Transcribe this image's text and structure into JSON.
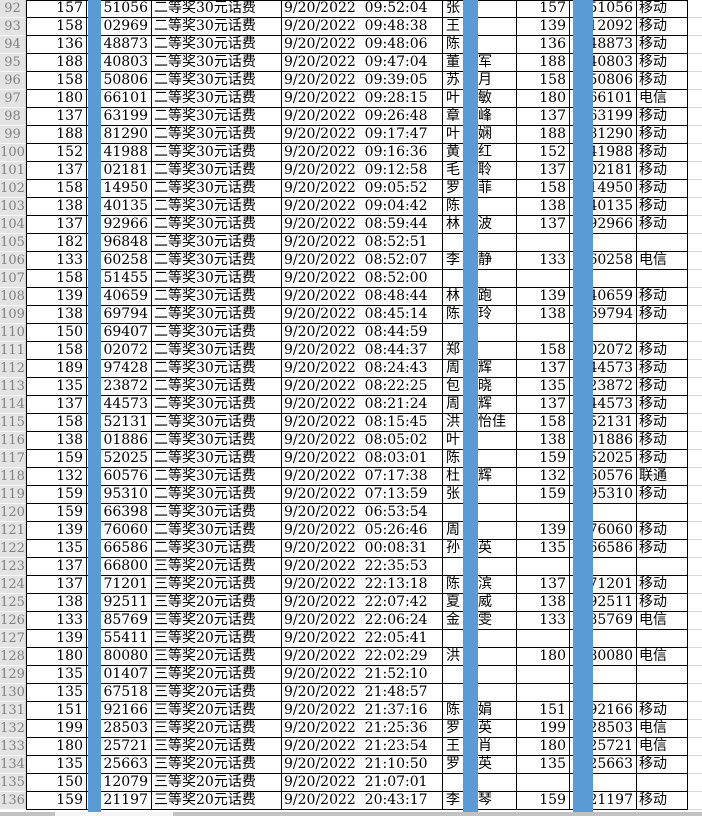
{
  "colors": {
    "redaction_blue": "#5B9BD5",
    "grid_black": "#000000",
    "row_header_bg": "#e3e3e3",
    "row_header_text": "#808080",
    "light_gridline": "#d8d8d8",
    "scrollbar_track": "#c2c2c2",
    "scrollbar_thumb": "#f5f5f5"
  },
  "table": {
    "rows": [
      {
        "n": "92",
        "a": "157",
        "b": "51056",
        "c": "二等奖30元话费",
        "d": "9/20/2022  09:52:04",
        "e1": "张",
        "e2": "",
        "f": "157",
        "g": "51056",
        "h": "移动"
      },
      {
        "n": "93",
        "a": "158",
        "b": "02969",
        "c": "二等奖30元话费",
        "d": "9/20/2022  09:48:38",
        "e1": "王",
        "e2": "",
        "f": "139",
        "g": "12092",
        "h": "移动"
      },
      {
        "n": "94",
        "a": "136",
        "b": "48873",
        "c": "二等奖30元话费",
        "d": "9/20/2022  09:48:06",
        "e1": "陈",
        "e2": "",
        "f": "136",
        "g": "48873",
        "h": "移动"
      },
      {
        "n": "95",
        "a": "188",
        "b": "40803",
        "c": "二等奖30元话费",
        "d": "9/20/2022  09:47:04",
        "e1": "董",
        "e2": "军",
        "f": "188",
        "g": "40803",
        "h": "移动"
      },
      {
        "n": "96",
        "a": "158",
        "b": "50806",
        "c": "二等奖30元话费",
        "d": "9/20/2022  09:39:05",
        "e1": "苏",
        "e2": "月",
        "f": "158",
        "g": "50806",
        "h": "移动"
      },
      {
        "n": "97",
        "a": "180",
        "b": "66101",
        "c": "二等奖30元话费",
        "d": "9/20/2022  09:28:15",
        "e1": "叶",
        "e2": "敏",
        "f": "180",
        "g": "66101",
        "h": "电信"
      },
      {
        "n": "98",
        "a": "137",
        "b": "63199",
        "c": "二等奖30元话费",
        "d": "9/20/2022  09:26:48",
        "e1": "章",
        "e2": "峰",
        "f": "137",
        "g": "63199",
        "h": "移动"
      },
      {
        "n": "99",
        "a": "188",
        "b": "81290",
        "c": "二等奖30元话费",
        "d": "9/20/2022  09:17:47",
        "e1": "叶",
        "e2": "娴",
        "f": "188",
        "g": "81290",
        "h": "移动"
      },
      {
        "n": "100",
        "a": "152",
        "b": "41988",
        "c": "二等奖30元话费",
        "d": "9/20/2022  09:16:36",
        "e1": "黄",
        "e2": "红",
        "f": "152",
        "g": "41988",
        "h": "移动"
      },
      {
        "n": "101",
        "a": "137",
        "b": "02181",
        "c": "二等奖30元话费",
        "d": "9/20/2022  09:12:58",
        "e1": "毛",
        "e2": "聆",
        "f": "137",
        "g": "02181",
        "h": "移动"
      },
      {
        "n": "102",
        "a": "158",
        "b": "14950",
        "c": "二等奖30元话费",
        "d": "9/20/2022  09:05:52",
        "e1": "罗",
        "e2": "菲",
        "f": "158",
        "g": "14950",
        "h": "移动"
      },
      {
        "n": "103",
        "a": "138",
        "b": "40135",
        "c": "二等奖30元话费",
        "d": "9/20/2022  09:04:42",
        "e1": "陈",
        "e2": "",
        "f": "138",
        "g": "40135",
        "h": "移动"
      },
      {
        "n": "104",
        "a": "137",
        "b": "92966",
        "c": "二等奖30元话费",
        "d": "9/20/2022  08:59:44",
        "e1": "林",
        "e2": "波",
        "f": "137",
        "g": "92966",
        "h": "移动"
      },
      {
        "n": "105",
        "a": "182",
        "b": "96848",
        "c": "二等奖30元话费",
        "d": "9/20/2022  08:52:51",
        "e1": "",
        "e2": "",
        "f": "",
        "g": "",
        "h": ""
      },
      {
        "n": "106",
        "a": "133",
        "b": "60258",
        "c": "二等奖30元话费",
        "d": "9/20/2022  08:52:07",
        "e1": "李",
        "e2": "静",
        "f": "133",
        "g": "60258",
        "h": "电信"
      },
      {
        "n": "107",
        "a": "158",
        "b": "51455",
        "c": "二等奖30元话费",
        "d": "9/20/2022  08:52:00",
        "e1": "",
        "e2": "",
        "f": "",
        "g": "",
        "h": ""
      },
      {
        "n": "108",
        "a": "139",
        "b": "40659",
        "c": "二等奖30元话费",
        "d": "9/20/2022  08:48:44",
        "e1": "林",
        "e2": "跑",
        "f": "139",
        "g": "40659",
        "h": "移动"
      },
      {
        "n": "109",
        "a": "138",
        "b": "69794",
        "c": "二等奖30元话费",
        "d": "9/20/2022  08:45:14",
        "e1": "陈",
        "e2": "玲",
        "f": "138",
        "g": "69794",
        "h": "移动"
      },
      {
        "n": "110",
        "a": "150",
        "b": "69407",
        "c": "二等奖30元话费",
        "d": "9/20/2022  08:44:59",
        "e1": "",
        "e2": "",
        "f": "",
        "g": "",
        "h": ""
      },
      {
        "n": "111",
        "a": "158",
        "b": "02072",
        "c": "二等奖30元话费",
        "d": "9/20/2022  08:44:37",
        "e1": "郑",
        "e2": "",
        "f": "158",
        "g": "02072",
        "h": "移动"
      },
      {
        "n": "112",
        "a": "189",
        "b": "97428",
        "c": "二等奖30元话费",
        "d": "9/20/2022  08:24:43",
        "e1": "周",
        "e2": "辉",
        "f": "137",
        "g": "44573",
        "h": "移动"
      },
      {
        "n": "113",
        "a": "135",
        "b": "23872",
        "c": "二等奖30元话费",
        "d": "9/20/2022  08:22:25",
        "e1": "包",
        "e2": "晓",
        "f": "135",
        "g": "23872",
        "h": "移动"
      },
      {
        "n": "114",
        "a": "137",
        "b": "44573",
        "c": "二等奖30元话费",
        "d": "9/20/2022  08:21:24",
        "e1": "周",
        "e2": "辉",
        "f": "137",
        "g": "44573",
        "h": "移动"
      },
      {
        "n": "115",
        "a": "158",
        "b": "52131",
        "c": "二等奖30元话费",
        "d": "9/20/2022  08:15:45",
        "e1": "洪",
        "e2": "怡佳",
        "f": "158",
        "g": "52131",
        "h": "移动"
      },
      {
        "n": "116",
        "a": "138",
        "b": "01886",
        "c": "二等奖30元话费",
        "d": "9/20/2022  08:05:02",
        "e1": "叶",
        "e2": "",
        "f": "138",
        "g": "01886",
        "h": "移动"
      },
      {
        "n": "117",
        "a": "159",
        "b": "52025",
        "c": "二等奖30元话费",
        "d": "9/20/2022  08:03:01",
        "e1": "陈",
        "e2": "",
        "f": "159",
        "g": "52025",
        "h": "移动"
      },
      {
        "n": "118",
        "a": "132",
        "b": "60576",
        "c": "二等奖30元话费",
        "d": "9/20/2022  07:17:38",
        "e1": "杜",
        "e2": "辉",
        "f": "132",
        "g": "60576",
        "h": "联通"
      },
      {
        "n": "119",
        "a": "159",
        "b": "95310",
        "c": "二等奖30元话费",
        "d": "9/20/2022  07:13:59",
        "e1": "张",
        "e2": "",
        "f": "159",
        "g": "95310",
        "h": "移动"
      },
      {
        "n": "120",
        "a": "159",
        "b": "66398",
        "c": "二等奖30元话费",
        "d": "9/20/2022  06:53:54",
        "e1": "",
        "e2": "",
        "f": "",
        "g": "",
        "h": ""
      },
      {
        "n": "121",
        "a": "139",
        "b": "76060",
        "c": "二等奖30元话费",
        "d": "9/20/2022  05:26:46",
        "e1": "周",
        "e2": "",
        "f": "139",
        "g": "76060",
        "h": "移动"
      },
      {
        "n": "122",
        "a": "135",
        "b": "66586",
        "c": "二等奖30元话费",
        "d": "9/20/2022  00:08:31",
        "e1": "孙",
        "e2": "英",
        "f": "135",
        "g": "66586",
        "h": "移动"
      },
      {
        "n": "123",
        "a": "137",
        "b": "66800",
        "c": "三等奖20元话费",
        "d": "9/20/2022  22:35:53",
        "e1": "",
        "e2": "",
        "f": "",
        "g": "",
        "h": ""
      },
      {
        "n": "124",
        "a": "137",
        "b": "71201",
        "c": "三等奖20元话费",
        "d": "9/20/2022  22:13:18",
        "e1": "陈",
        "e2": "滨",
        "f": "137",
        "g": "71201",
        "h": "移动"
      },
      {
        "n": "125",
        "a": "138",
        "b": "92511",
        "c": "三等奖20元话费",
        "d": "9/20/2022  22:07:42",
        "e1": "夏",
        "e2": "威",
        "f": "138",
        "g": "92511",
        "h": "移动"
      },
      {
        "n": "126",
        "a": "133",
        "b": "85769",
        "c": "三等奖20元话费",
        "d": "9/20/2022  22:06:24",
        "e1": "金",
        "e2": "雯",
        "f": "133",
        "g": "85769",
        "h": "电信"
      },
      {
        "n": "127",
        "a": "139",
        "b": "55411",
        "c": "三等奖20元话费",
        "d": "9/20/2022  22:05:41",
        "e1": "",
        "e2": "",
        "f": "",
        "g": "",
        "h": ""
      },
      {
        "n": "128",
        "a": "180",
        "b": "80080",
        "c": "三等奖20元话费",
        "d": "9/20/2022  22:02:29",
        "e1": "洪",
        "e2": "",
        "f": "180",
        "g": "80080",
        "h": "电信"
      },
      {
        "n": "129",
        "a": "135",
        "b": "01407",
        "c": "三等奖20元话费",
        "d": "9/20/2022  21:52:10",
        "e1": "",
        "e2": "",
        "f": "",
        "g": "",
        "h": ""
      },
      {
        "n": "130",
        "a": "135",
        "b": "67518",
        "c": "三等奖20元话费",
        "d": "9/20/2022  21:48:57",
        "e1": "",
        "e2": "",
        "f": "",
        "g": "",
        "h": ""
      },
      {
        "n": "131",
        "a": "151",
        "b": "92166",
        "c": "三等奖20元话费",
        "d": "9/20/2022  21:37:16",
        "e1": "陈",
        "e2": "娟",
        "f": "151",
        "g": "92166",
        "h": "移动"
      },
      {
        "n": "132",
        "a": "199",
        "b": "28503",
        "c": "三等奖20元话费",
        "d": "9/20/2022  21:25:36",
        "e1": "罗",
        "e2": "英",
        "f": "199",
        "g": "28503",
        "h": "电信"
      },
      {
        "n": "133",
        "a": "180",
        "b": "25721",
        "c": "三等奖20元话费",
        "d": "9/20/2022  21:23:54",
        "e1": "王",
        "e2": "肖",
        "f": "180",
        "g": "25721",
        "h": "电信"
      },
      {
        "n": "134",
        "a": "135",
        "b": "25663",
        "c": "三等奖20元话费",
        "d": "9/20/2022  21:10:50",
        "e1": "罗",
        "e2": "英",
        "f": "135",
        "g": "25663",
        "h": "移动"
      },
      {
        "n": "135",
        "a": "150",
        "b": "12079",
        "c": "三等奖20元话费",
        "d": "9/20/2022  21:07:01",
        "e1": "",
        "e2": "",
        "f": "",
        "g": "",
        "h": ""
      },
      {
        "n": "136",
        "a": "159",
        "b": "21197",
        "c": "三等奖20元话费",
        "d": "9/20/2022  20:43:17",
        "e1": "李",
        "e2": "琴",
        "f": "159",
        "g": "21197",
        "h": "移动"
      }
    ]
  }
}
